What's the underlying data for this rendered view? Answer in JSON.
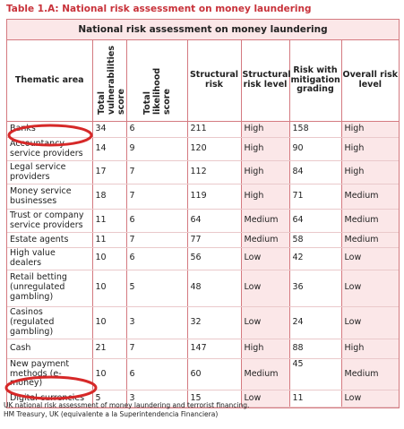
{
  "title": "Table 1.A: National risk assessment on money laundering",
  "table": {
    "caption": "National risk assessment on money laundering",
    "columns": [
      "Thematic area",
      "Total vulnerabilities score",
      "Total likelihood score",
      "Structural risk",
      "Structural risk level",
      "Risk with mitigation grading",
      "Overall risk level"
    ],
    "rows": [
      [
        "Banks",
        34,
        6,
        211,
        "High",
        158,
        "High"
      ],
      [
        "Accountancy service providers",
        14,
        9,
        120,
        "High",
        90,
        "High"
      ],
      [
        "Legal service providers",
        17,
        7,
        112,
        "High",
        84,
        "High"
      ],
      [
        "Money service businesses",
        18,
        7,
        119,
        "High",
        71,
        "Medium"
      ],
      [
        "Trust or company service providers",
        11,
        6,
        64,
        "Medium",
        64,
        "Medium"
      ],
      [
        "Estate agents",
        11,
        7,
        77,
        "Medium",
        58,
        "Medium"
      ],
      [
        "High value dealers",
        10,
        6,
        56,
        "Low",
        42,
        "Low"
      ],
      [
        "Retail betting (unregulated gambling)",
        10,
        5,
        48,
        "Low",
        36,
        "Low"
      ],
      [
        "Casinos (regulated gambling)",
        10,
        3,
        32,
        "Low",
        24,
        "Low"
      ],
      [
        "Cash",
        21,
        7,
        147,
        "High",
        88,
        "High"
      ],
      [
        "New payment methods (e-money)",
        10,
        6,
        60,
        "Medium",
        45,
        "Medium"
      ],
      [
        "Digital currencies",
        5,
        3,
        15,
        "Low",
        11,
        "Low"
      ]
    ]
  },
  "footer": [
    "UK national risk assessment of money laundering and terrorist financing.",
    "HM Treasury, UK (equivalente a la Superintendencia Financiera)"
  ]
}
